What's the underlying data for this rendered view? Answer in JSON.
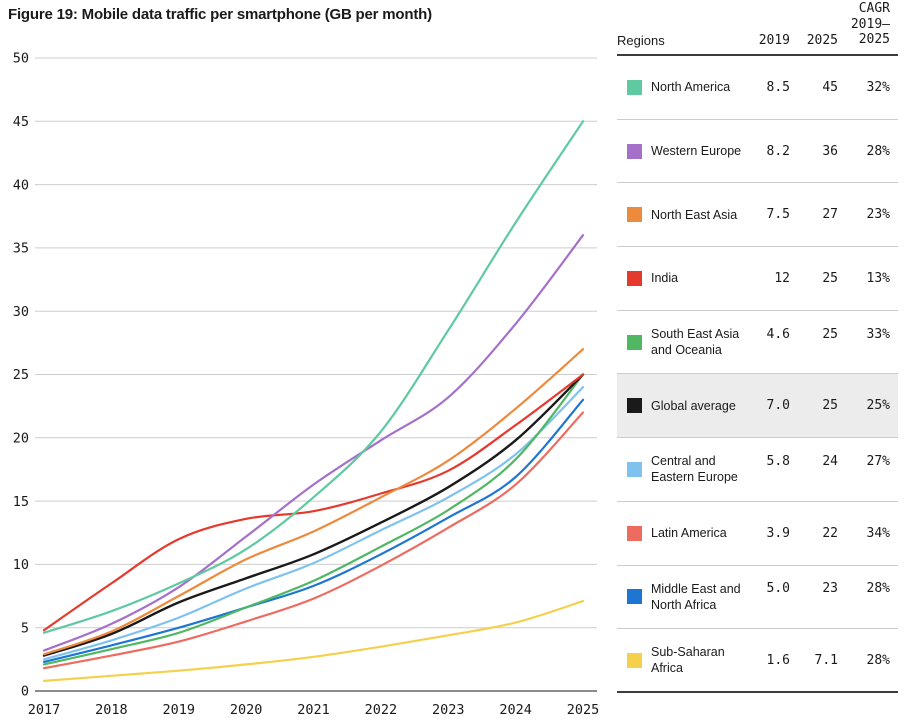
{
  "title": "Figure 19: Mobile data traffic per smartphone (GB per month)",
  "table": {
    "headers": {
      "regions": "Regions",
      "y2019": "2019",
      "y2025": "2025",
      "cagr": "CAGR\n2019–\n2025"
    },
    "rows": [
      {
        "name": "North America",
        "color": "#5fc9a1",
        "v2019": "8.5",
        "v2025": "45",
        "cagr": "32%",
        "highlight": false
      },
      {
        "name": "Western Europe",
        "color": "#a470c9",
        "v2019": "8.2",
        "v2025": "36",
        "cagr": "28%",
        "highlight": false
      },
      {
        "name": "North East Asia",
        "color": "#ec8a3d",
        "v2019": "7.5",
        "v2025": "27",
        "cagr": "23%",
        "highlight": false
      },
      {
        "name": "India",
        "color": "#e6392e",
        "v2019": "12",
        "v2025": "25",
        "cagr": "13%",
        "highlight": false
      },
      {
        "name": "South East Asia\nand Oceania",
        "color": "#50b763",
        "v2019": "4.6",
        "v2025": "25",
        "cagr": "33%",
        "highlight": false
      },
      {
        "name": "Global average",
        "color": "#1a1a1a",
        "v2019": "7.0",
        "v2025": "25",
        "cagr": "25%",
        "highlight": true
      },
      {
        "name": "Central and\nEastern Europe",
        "color": "#7fc2ee",
        "v2019": "5.8",
        "v2025": "24",
        "cagr": "27%",
        "highlight": false
      },
      {
        "name": "Latin America",
        "color": "#ee6b60",
        "v2019": "3.9",
        "v2025": "22",
        "cagr": "34%",
        "highlight": false
      },
      {
        "name": "Middle East and\nNorth Africa",
        "color": "#1d76d2",
        "v2019": "5.0",
        "v2025": "23",
        "cagr": "28%",
        "highlight": false
      },
      {
        "name": "Sub-Saharan Africa",
        "color": "#f5d04d",
        "v2019": "1.6",
        "v2025": "7.1",
        "cagr": "28%",
        "highlight": false
      }
    ]
  },
  "chart_data": {
    "type": "line",
    "title": "Figure 19: Mobile data traffic per smartphone (GB per month)",
    "xlabel": "",
    "ylabel": "GB per month",
    "x": [
      2017,
      2018,
      2019,
      2020,
      2021,
      2022,
      2023,
      2024,
      2025
    ],
    "ylim": [
      0,
      50
    ],
    "ytick_step": 5,
    "grid": true,
    "legend_position": "table-right",
    "series": [
      {
        "name": "North America",
        "color": "#5fc9a1",
        "values": [
          4.6,
          6.3,
          8.5,
          11.2,
          15.3,
          20.5,
          28.5,
          37.0,
          45.0
        ]
      },
      {
        "name": "Western Europe",
        "color": "#a470c9",
        "values": [
          3.2,
          5.3,
          8.2,
          12.2,
          16.3,
          19.8,
          23.2,
          29.0,
          36.0
        ]
      },
      {
        "name": "North East Asia",
        "color": "#ec8a3d",
        "values": [
          2.9,
          4.7,
          7.5,
          10.4,
          12.6,
          15.3,
          18.2,
          22.3,
          27.0
        ]
      },
      {
        "name": "India",
        "color": "#e6392e",
        "values": [
          4.8,
          8.5,
          12.0,
          13.6,
          14.2,
          15.6,
          17.4,
          21.0,
          25.0
        ]
      },
      {
        "name": "South East Asia and Oceania",
        "color": "#50b763",
        "values": [
          2.1,
          3.3,
          4.6,
          6.6,
          8.7,
          11.4,
          14.3,
          18.3,
          25.0
        ]
      },
      {
        "name": "Global average",
        "color": "#1a1a1a",
        "values": [
          2.8,
          4.5,
          7.0,
          8.9,
          10.8,
          13.3,
          16.1,
          19.8,
          25.0
        ]
      },
      {
        "name": "Central and Eastern Europe",
        "color": "#7fc2ee",
        "values": [
          2.5,
          4.0,
          5.8,
          8.1,
          10.1,
          12.7,
          15.3,
          18.7,
          24.0
        ]
      },
      {
        "name": "Latin America",
        "color": "#ee6b60",
        "values": [
          1.8,
          2.8,
          3.9,
          5.5,
          7.3,
          9.9,
          12.9,
          16.3,
          22.0
        ]
      },
      {
        "name": "Middle East and North Africa",
        "color": "#1d76d2",
        "values": [
          2.3,
          3.6,
          5.0,
          6.6,
          8.3,
          10.8,
          13.7,
          16.9,
          23.0
        ]
      },
      {
        "name": "Sub-Saharan Africa",
        "color": "#f5d04d",
        "values": [
          0.8,
          1.2,
          1.6,
          2.1,
          2.7,
          3.5,
          4.4,
          5.4,
          7.1
        ]
      }
    ]
  },
  "style": {
    "grid_color": "#cdcdcd",
    "axis_color": "#8c8c8c",
    "text_color": "#1a1a1a",
    "highlight_row_color": "#ececec"
  }
}
